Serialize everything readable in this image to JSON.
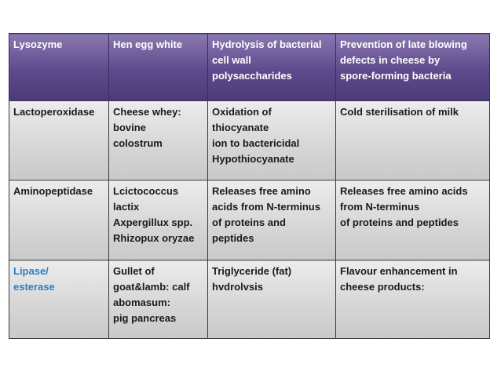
{
  "colors": {
    "header_fill": "#5d4a8c",
    "body_fill": "#d7d7d7",
    "accent_text": "#2e7fc7"
  },
  "table": {
    "rows": [
      {
        "enzyme": "Lysozyme",
        "source": "Hen egg white",
        "action": "Hydrolysis of bacterial\ncell wall\npolysaccharides",
        "application": "Prevention of late blowing\ndefects in cheese by\nspore-forming bacteria"
      },
      {
        "enzyme": "Lactoperoxidase",
        "source": "Cheese whey:\nbovine\ncolostrum",
        "action": "Oxidation of\nthiocyanate\nion to bactericidal\nHypothiocyanate",
        "application": "Cold sterilisation of milk"
      },
      {
        "enzyme": "Aminopeptidase",
        "source": "Lcictococcus\nlactix\nAxpergillux spp.\nRhizopux oryzae",
        "action": "Releases free amino\nacids from N-terminus\nof proteins and\npeptides",
        "application": "Releases free amino acids\nfrom N-terminus\nof proteins and peptides"
      },
      {
        "enzyme": "Lipase/\nesterase",
        "source": "Gullet of\ngoat&lamb: calf\nabomasum:\npig pancreas",
        "action": "Triglyceride (fat)\nhvdrolvsis",
        "application": "Flavour enhancement in\ncheese products:"
      }
    ]
  }
}
